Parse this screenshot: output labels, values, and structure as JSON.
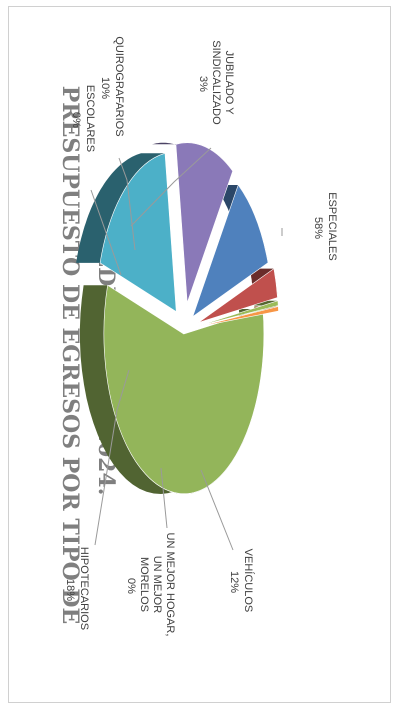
{
  "chart_data": {
    "type": "pie",
    "style": "3d-exploded",
    "rotation": "rotated 90 degrees clockwise",
    "title_lines": [
      "PRESUPUESTO DE EGRESOS POR TIPO DE",
      "CRÉDITO JUNIO 2024."
    ],
    "slices": [
      {
        "label_lines": [
          "ESPECIALES"
        ],
        "value_label": "58%",
        "value": 58,
        "color": "#93b55a"
      },
      {
        "label_lines": [
          "HIPOTECARIOS"
        ],
        "value_label": "18%",
        "value": 18,
        "color": "#4cb0c8"
      },
      {
        "label_lines": [
          "VEHÍCULOS"
        ],
        "value_label": "12%",
        "value": 12,
        "color": "#8a79b8"
      },
      {
        "label_lines": [
          "QUIROGRAFARIOS"
        ],
        "value_label": "10%",
        "value": 10,
        "color": "#4f81bd"
      },
      {
        "label_lines": [
          "JUBILADO Y",
          "SINDICALIZADO"
        ],
        "value_label": "3%",
        "value": 3,
        "color": "#c0504d"
      },
      {
        "label_lines": [
          "ESCOLARES"
        ],
        "value_label": "0%",
        "value": 0,
        "color": "#9bbb59"
      },
      {
        "label_lines": [
          "UN MEJOR HOGAR,",
          "UN MEJOR",
          "MORELOS"
        ],
        "value_label": "0%",
        "value": 0,
        "color": "#f79646"
      }
    ]
  }
}
